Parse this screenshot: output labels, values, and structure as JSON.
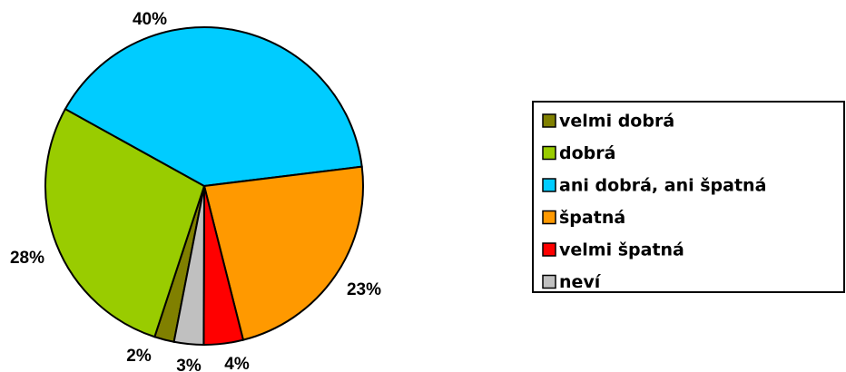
{
  "chart_data": {
    "type": "pie",
    "categories": [
      "velmi dobrá",
      "dobrá",
      "ani dobrá, ani špatná",
      "špatná",
      "velmi špatná",
      "neví"
    ],
    "values": [
      2,
      28,
      40,
      23,
      4,
      3
    ],
    "value_labels": [
      "2%",
      "28%",
      "40%",
      "23%",
      "4%",
      "3%"
    ],
    "colors": [
      "#808000",
      "#99cc00",
      "#00ccff",
      "#ff9900",
      "#ff0000",
      "#c0c0c0"
    ],
    "legend": "right"
  }
}
